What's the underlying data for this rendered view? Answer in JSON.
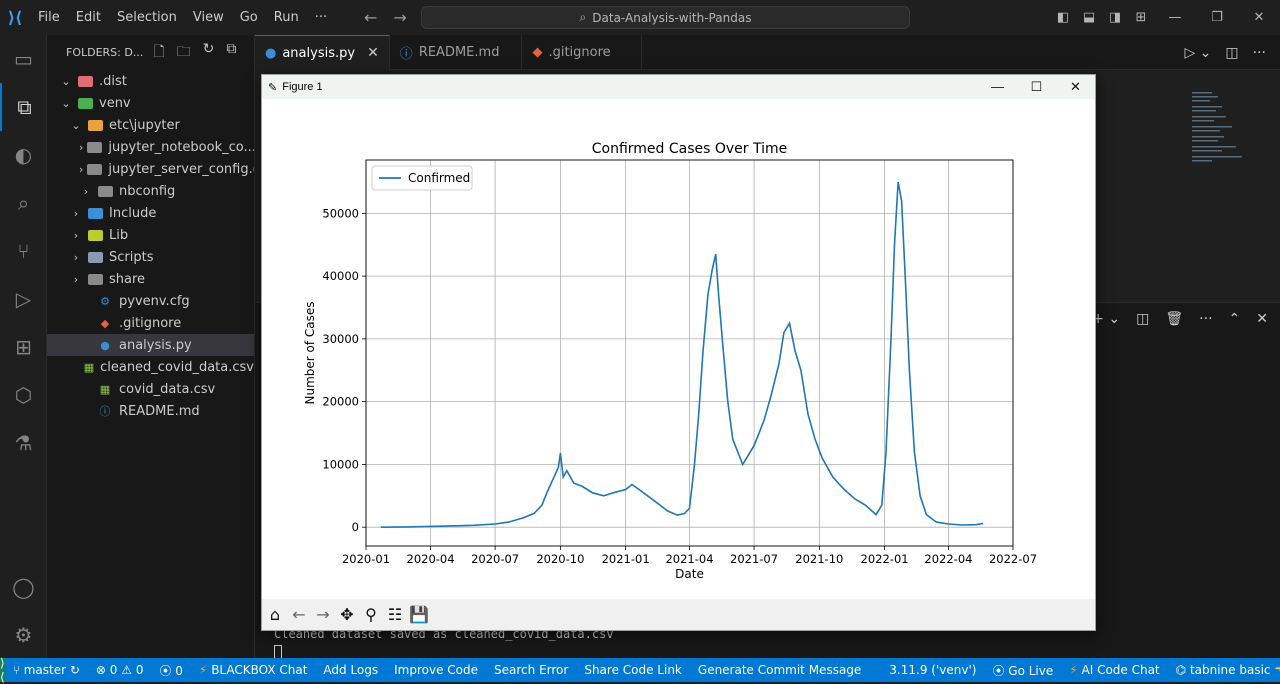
{
  "titlebar": {
    "menu": [
      "File",
      "Edit",
      "Selection",
      "View",
      "Go",
      "Run",
      "···"
    ],
    "search_text": "Data-Analysis-with-Pandas"
  },
  "sidebar": {
    "header": "FOLDERS: D...",
    "items": [
      {
        "label": ".dist",
        "type": "folder",
        "expanded": true,
        "color": "#e06c75"
      },
      {
        "label": "venv",
        "type": "folder",
        "expanded": true,
        "color": "#4caf50"
      },
      {
        "label": "etc\\jupyter",
        "type": "folder",
        "expanded": true,
        "color": "#e8a33d"
      },
      {
        "label": "jupyter_notebook_co...",
        "type": "folder",
        "expanded": false,
        "color": "#8a8a8a"
      },
      {
        "label": "jupyter_server_config.d",
        "type": "folder",
        "expanded": false,
        "color": "#8a8a8a"
      },
      {
        "label": "nbconfig",
        "type": "folder",
        "expanded": false,
        "color": "#8a8a8a"
      },
      {
        "label": "Include",
        "type": "folder",
        "expanded": false,
        "color": "#3a8fd6"
      },
      {
        "label": "Lib",
        "type": "folder",
        "expanded": false,
        "color": "#c0ca33"
      },
      {
        "label": "Scripts",
        "type": "folder",
        "expanded": false,
        "color": "#8a9bb0"
      },
      {
        "label": "share",
        "type": "folder",
        "expanded": false,
        "color": "#8a8a8a"
      },
      {
        "label": "pyvenv.cfg",
        "type": "file",
        "icon": "gear-icon",
        "color": "#3a8fd6"
      },
      {
        "label": ".gitignore",
        "type": "file",
        "icon": "git-icon",
        "color": "#e8623d"
      },
      {
        "label": "analysis.py",
        "type": "file",
        "icon": "python-icon",
        "color": "#3a8fd6",
        "selected": true
      },
      {
        "label": "cleaned_covid_data.csv",
        "type": "file",
        "icon": "csv-icon",
        "color": "#8bc34a"
      },
      {
        "label": "covid_data.csv",
        "type": "file",
        "icon": "csv-icon",
        "color": "#8bc34a"
      },
      {
        "label": "README.md",
        "type": "file",
        "icon": "info-icon",
        "color": "#3a8fd6"
      }
    ]
  },
  "tabs": [
    {
      "label": "analysis.py",
      "active": true
    },
    {
      "label": "README.md",
      "active": false
    },
    {
      "label": ".gitignore",
      "active": false
    }
  ],
  "terminal": {
    "line": "Cleaned dataset saved as cleaned_covid_data.csv"
  },
  "figure": {
    "window_title": "Figure 1"
  },
  "chart_data": {
    "type": "line",
    "title": "Confirmed Cases Over Time",
    "xlabel": "Date",
    "ylabel": "Number of Cases",
    "legend": [
      "Confirmed"
    ],
    "legend_position": "top-left",
    "grid": true,
    "color": "#1f77b4",
    "x_ticks": [
      "2020-01",
      "2020-04",
      "2020-07",
      "2020-10",
      "2021-01",
      "2021-04",
      "2021-07",
      "2021-10",
      "2022-01",
      "2022-04",
      "2022-07"
    ],
    "y_ticks": [
      "0",
      "10000",
      "20000",
      "30000",
      "40000",
      "50000"
    ],
    "ylim": [
      -3000,
      58500
    ],
    "xlim": [
      "2020-01-01",
      "2022-07-01"
    ],
    "series": [
      {
        "name": "Confirmed",
        "points": [
          [
            "2020-01-22",
            0
          ],
          [
            "2020-03-01",
            50
          ],
          [
            "2020-04-15",
            150
          ],
          [
            "2020-06-01",
            300
          ],
          [
            "2020-07-01",
            500
          ],
          [
            "2020-07-20",
            800
          ],
          [
            "2020-08-10",
            1500
          ],
          [
            "2020-08-25",
            2200
          ],
          [
            "2020-09-05",
            3500
          ],
          [
            "2020-09-12",
            5500
          ],
          [
            "2020-09-20",
            7500
          ],
          [
            "2020-09-28",
            9500
          ],
          [
            "2020-10-01",
            11800
          ],
          [
            "2020-10-05",
            8000
          ],
          [
            "2020-10-10",
            9000
          ],
          [
            "2020-10-20",
            7000
          ],
          [
            "2020-11-01",
            6500
          ],
          [
            "2020-11-15",
            5500
          ],
          [
            "2020-12-01",
            5000
          ],
          [
            "2020-12-15",
            5500
          ],
          [
            "2021-01-01",
            6000
          ],
          [
            "2021-01-10",
            6800
          ],
          [
            "2021-01-20",
            6000
          ],
          [
            "2021-02-01",
            5000
          ],
          [
            "2021-02-15",
            3800
          ],
          [
            "2021-03-01",
            2600
          ],
          [
            "2021-03-15",
            1900
          ],
          [
            "2021-03-25",
            2200
          ],
          [
            "2021-04-01",
            3000
          ],
          [
            "2021-04-08",
            10000
          ],
          [
            "2021-04-14",
            18000
          ],
          [
            "2021-04-20",
            28000
          ],
          [
            "2021-04-27",
            37000
          ],
          [
            "2021-05-03",
            41000
          ],
          [
            "2021-05-08",
            43500
          ],
          [
            "2021-05-12",
            37000
          ],
          [
            "2021-05-18",
            29000
          ],
          [
            "2021-05-25",
            20000
          ],
          [
            "2021-06-01",
            14000
          ],
          [
            "2021-06-15",
            10000
          ],
          [
            "2021-07-01",
            13000
          ],
          [
            "2021-07-15",
            17000
          ],
          [
            "2021-07-25",
            21000
          ],
          [
            "2021-08-05",
            26000
          ],
          [
            "2021-08-12",
            31000
          ],
          [
            "2021-08-20",
            32500
          ],
          [
            "2021-08-28",
            28000
          ],
          [
            "2021-09-05",
            25000
          ],
          [
            "2021-09-15",
            18000
          ],
          [
            "2021-09-25",
            14000
          ],
          [
            "2021-10-05",
            11000
          ],
          [
            "2021-10-20",
            8000
          ],
          [
            "2021-11-05",
            6000
          ],
          [
            "2021-11-20",
            4500
          ],
          [
            "2021-12-05",
            3500
          ],
          [
            "2021-12-20",
            2000
          ],
          [
            "2021-12-28",
            3500
          ],
          [
            "2022-01-03",
            12000
          ],
          [
            "2022-01-10",
            30000
          ],
          [
            "2022-01-15",
            45000
          ],
          [
            "2022-01-20",
            55000
          ],
          [
            "2022-01-25",
            52000
          ],
          [
            "2022-01-30",
            40000
          ],
          [
            "2022-02-05",
            25000
          ],
          [
            "2022-02-12",
            12000
          ],
          [
            "2022-02-20",
            5000
          ],
          [
            "2022-03-01",
            2000
          ],
          [
            "2022-03-15",
            800
          ],
          [
            "2022-04-01",
            500
          ],
          [
            "2022-04-20",
            350
          ],
          [
            "2022-05-10",
            400
          ],
          [
            "2022-05-20",
            600
          ]
        ]
      }
    ]
  },
  "statusbar": {
    "branch": "master",
    "errors": "0",
    "warnings": "0",
    "ports": "0",
    "items": [
      "BLACKBOX Chat",
      "Add Logs",
      "Improve Code",
      "Search Error",
      "Share Code Link",
      "Generate Commit Message"
    ],
    "python": "3.11.9 ('venv')",
    "go_live": "Go Live",
    "ai_chat": "AI Code Chat",
    "tabnine": "tabnine basic"
  }
}
